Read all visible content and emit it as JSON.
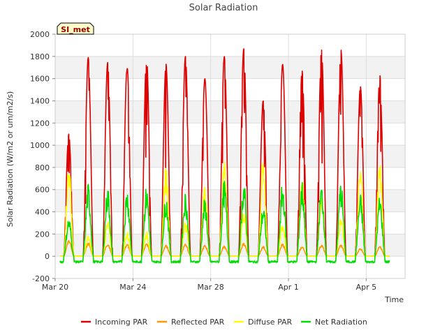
{
  "chart_data": {
    "type": "line",
    "title": "Solar Radiation",
    "xlabel": "Time",
    "ylabel": "Solar Radiation (W/m2 or um/m2/s)",
    "site_badge": "SI_met",
    "xlim": [
      0,
      18
    ],
    "ylim": [
      -200,
      2000
    ],
    "yticks": [
      -200,
      0,
      200,
      400,
      600,
      800,
      1000,
      1200,
      1400,
      1600,
      1800,
      2000
    ],
    "xticks": [
      {
        "pos": 0,
        "label": "Mar 20"
      },
      {
        "pos": 4,
        "label": "Mar 24"
      },
      {
        "pos": 8,
        "label": "Mar 28"
      },
      {
        "pos": 12,
        "label": "Apr 1"
      },
      {
        "pos": 16,
        "label": "Apr 5"
      }
    ],
    "days": [
      0.7,
      1.7,
      2.7,
      3.7,
      4.7,
      5.7,
      6.7,
      7.7,
      8.7,
      9.7,
      10.7,
      11.7,
      12.7,
      13.7,
      14.7,
      15.7,
      16.7
    ],
    "series": [
      {
        "name": "Incoming PAR",
        "color": "#dd0000",
        "night": 0,
        "daily_peak": [
          1100,
          1790,
          1745,
          1710,
          1800,
          1730,
          1800,
          1600,
          1800,
          1870,
          1400,
          1730,
          1670,
          1860,
          1860,
          1530,
          1630
        ]
      },
      {
        "name": "Reflected PAR",
        "color": "#ff9900",
        "night": 0,
        "daily_peak": [
          130,
          110,
          105,
          100,
          105,
          90,
          105,
          90,
          85,
          110,
          80,
          100,
          80,
          95,
          95,
          65,
          80
        ]
      },
      {
        "name": "Diffuse PAR",
        "color": "#ffff00",
        "night": 0,
        "daily_peak": [
          730,
          160,
          270,
          190,
          190,
          700,
          280,
          540,
          780,
          360,
          750,
          260,
          610,
          500,
          300,
          700,
          760
        ]
      },
      {
        "name": "Net Radiation",
        "color": "#00dd00",
        "night": -50,
        "daily_peak": [
          290,
          540,
          520,
          510,
          520,
          460,
          480,
          430,
          560,
          570,
          380,
          550,
          560,
          540,
          560,
          460,
          450
        ]
      }
    ]
  }
}
